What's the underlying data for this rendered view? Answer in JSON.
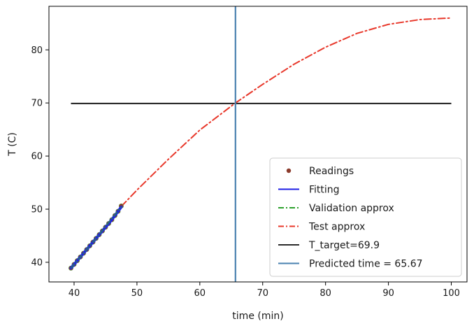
{
  "chart_data": {
    "type": "line",
    "xlabel": "time (min)",
    "ylabel": "T (C)",
    "xlim": [
      36,
      102.5
    ],
    "ylim": [
      36.3,
      88.2
    ],
    "xticks": [
      40,
      50,
      60,
      70,
      80,
      90,
      100
    ],
    "yticks": [
      40,
      50,
      60,
      70,
      80
    ],
    "grid": false,
    "legend_position": "lower-right",
    "series": [
      {
        "name": "Readings",
        "style": "points",
        "color": "#8b3a2b",
        "x": [
          39.5,
          40.0,
          40.5,
          41.0,
          41.5,
          42.0,
          42.5,
          43.0,
          43.5,
          44.0,
          44.5,
          45.0,
          45.5,
          46.0,
          46.5,
          47.0,
          47.5
        ],
        "y": [
          38.9,
          39.6,
          40.3,
          41.0,
          41.7,
          42.4,
          43.1,
          43.8,
          44.5,
          45.2,
          45.9,
          46.6,
          47.3,
          48.0,
          48.8,
          49.6,
          50.6
        ]
      },
      {
        "name": "Fitting",
        "style": "solid",
        "color": "#1f1fe6",
        "x": [
          39.5,
          40.5,
          41.5,
          42.5,
          43.5,
          44.5,
          45.5,
          46.5,
          47.5
        ],
        "y": [
          38.9,
          40.3,
          41.7,
          43.1,
          44.5,
          45.9,
          47.3,
          48.8,
          50.4
        ]
      },
      {
        "name": "Validation approx",
        "style": "dashdot",
        "color": "#2ca02c",
        "x": [
          39.5,
          43.5,
          47.5
        ],
        "y": [
          38.9,
          44.5,
          50.4
        ]
      },
      {
        "name": "Test approx",
        "style": "dashdot",
        "color": "#e8372a",
        "x": [
          47.5,
          50,
          55,
          60,
          65.67,
          70,
          75,
          80,
          85,
          90,
          95,
          100
        ],
        "y": [
          50.5,
          53.6,
          59.4,
          64.9,
          70.0,
          73.5,
          77.3,
          80.5,
          83.1,
          84.8,
          85.7,
          86.0
        ]
      },
      {
        "name": "T_target=69.9",
        "style": "hline",
        "color": "#2b2b2b",
        "x": [
          39.5,
          100
        ],
        "y": [
          69.9,
          69.9
        ]
      },
      {
        "name": "Predicted time = 65.67",
        "style": "vline",
        "color": "#4a82b0",
        "x": [
          65.67
        ]
      }
    ]
  }
}
